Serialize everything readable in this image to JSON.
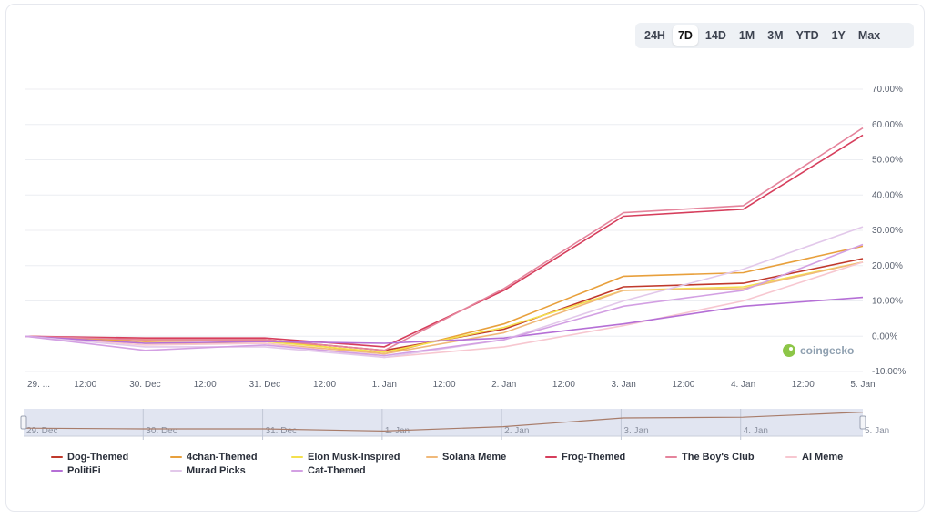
{
  "range_selector": {
    "options": [
      "24H",
      "7D",
      "14D",
      "1M",
      "3M",
      "YTD",
      "1Y",
      "Max"
    ],
    "selected": "7D"
  },
  "watermark": {
    "brand": "coingecko",
    "icon": "coingecko-logo-icon"
  },
  "chart_data": {
    "type": "line",
    "x": [
      "29. Dec 00:00",
      "29. Dec 12:00",
      "30. Dec 00:00",
      "30. Dec 12:00",
      "31. Dec 00:00",
      "31. Dec 12:00",
      "1. Jan 00:00",
      "1. Jan 12:00",
      "2. Jan 00:00",
      "2. Jan 12:00",
      "3. Jan 00:00",
      "3. Jan 12:00",
      "4. Jan 00:00",
      "4. Jan 12:00",
      "5. Jan 00:00"
    ],
    "x_tick_labels": [
      "29. ...",
      "12:00",
      "30. Dec",
      "12:00",
      "31. Dec",
      "12:00",
      "1. Jan",
      "12:00",
      "2. Jan",
      "12:00",
      "3. Jan",
      "12:00",
      "4. Jan",
      "12:00",
      "5. Jan"
    ],
    "y_tick_labels": [
      "70.00%",
      "60.00%",
      "50.00%",
      "40.00%",
      "30.00%",
      "20.00%",
      "10.00%",
      "0.00%",
      "-10.00%"
    ],
    "ylim": [
      -10,
      70
    ],
    "y_unit": "%",
    "grid": true,
    "legend_position": "bottom",
    "series": [
      {
        "name": "Dog-Themed",
        "color": "#c0392b",
        "points": [
          [
            0,
            0
          ],
          [
            2,
            -1
          ],
          [
            4,
            -1
          ],
          [
            6,
            -4
          ],
          [
            8,
            2
          ],
          [
            10,
            14
          ],
          [
            12,
            15
          ],
          [
            14,
            22
          ]
        ]
      },
      {
        "name": "4chan-Themed",
        "color": "#e8a03c",
        "points": [
          [
            0,
            0
          ],
          [
            2,
            -1.5
          ],
          [
            4,
            -1
          ],
          [
            6,
            -5
          ],
          [
            8,
            3.5
          ],
          [
            10,
            17
          ],
          [
            12,
            18
          ],
          [
            14,
            25.5
          ]
        ]
      },
      {
        "name": "Elon Musk-Inspired",
        "color": "#f4e04d",
        "points": [
          [
            0,
            0
          ],
          [
            2,
            -1
          ],
          [
            4,
            -1.5
          ],
          [
            6,
            -4.5
          ],
          [
            8,
            2.5
          ],
          [
            10,
            13
          ],
          [
            12,
            14
          ],
          [
            14,
            21
          ]
        ]
      },
      {
        "name": "Solana Meme",
        "color": "#f0b97a",
        "points": [
          [
            0,
            0
          ],
          [
            2,
            -2
          ],
          [
            4,
            -2
          ],
          [
            6,
            -5
          ],
          [
            8,
            1
          ],
          [
            10,
            13
          ],
          [
            12,
            13.5
          ],
          [
            14,
            21
          ]
        ]
      },
      {
        "name": "Frog-Themed",
        "color": "#d63e5c",
        "points": [
          [
            0,
            0
          ],
          [
            2,
            -0.5
          ],
          [
            4,
            -0.5
          ],
          [
            6,
            -3
          ],
          [
            8,
            13
          ],
          [
            10,
            34
          ],
          [
            12,
            36
          ],
          [
            14,
            57
          ]
        ]
      },
      {
        "name": "The Boy's Club",
        "color": "#e5849c",
        "points": [
          [
            0,
            0
          ],
          [
            2,
            -1
          ],
          [
            4,
            -1
          ],
          [
            6,
            -4
          ],
          [
            8,
            13.5
          ],
          [
            10,
            35
          ],
          [
            12,
            37
          ],
          [
            14,
            59
          ]
        ]
      },
      {
        "name": "AI Meme",
        "color": "#f7c7d0",
        "points": [
          [
            0,
            0
          ],
          [
            2,
            -2.5
          ],
          [
            4,
            -2
          ],
          [
            6,
            -6
          ],
          [
            8,
            -3
          ],
          [
            10,
            3
          ],
          [
            12,
            10
          ],
          [
            14,
            21
          ]
        ]
      },
      {
        "name": "PolitiFi",
        "color": "#b56fd6",
        "points": [
          [
            0,
            0
          ],
          [
            2,
            -2
          ],
          [
            4,
            -1.5
          ],
          [
            6,
            -2
          ],
          [
            8,
            -0.5
          ],
          [
            10,
            3.5
          ],
          [
            12,
            8.5
          ],
          [
            14,
            11
          ]
        ]
      },
      {
        "name": "Murad Picks",
        "color": "#e2c8ea",
        "points": [
          [
            0,
            0
          ],
          [
            2,
            -3
          ],
          [
            4,
            -3
          ],
          [
            6,
            -6
          ],
          [
            8,
            -1
          ],
          [
            10,
            10
          ],
          [
            12,
            19
          ],
          [
            14,
            31
          ]
        ]
      },
      {
        "name": "Cat-Themed",
        "color": "#d3a0e3",
        "points": [
          [
            0,
            0
          ],
          [
            2,
            -4
          ],
          [
            4,
            -2.5
          ],
          [
            6,
            -5.5
          ],
          [
            8,
            -1
          ],
          [
            10,
            8.5
          ],
          [
            12,
            13
          ],
          [
            14,
            26
          ]
        ]
      }
    ]
  },
  "navigator": {
    "tick_labels": [
      "29. Dec",
      "30. Dec",
      "31. Dec",
      "1. Jan",
      "2. Jan",
      "3. Jan",
      "4. Jan",
      "5. Jan"
    ],
    "series_color": "#a87c6a"
  }
}
